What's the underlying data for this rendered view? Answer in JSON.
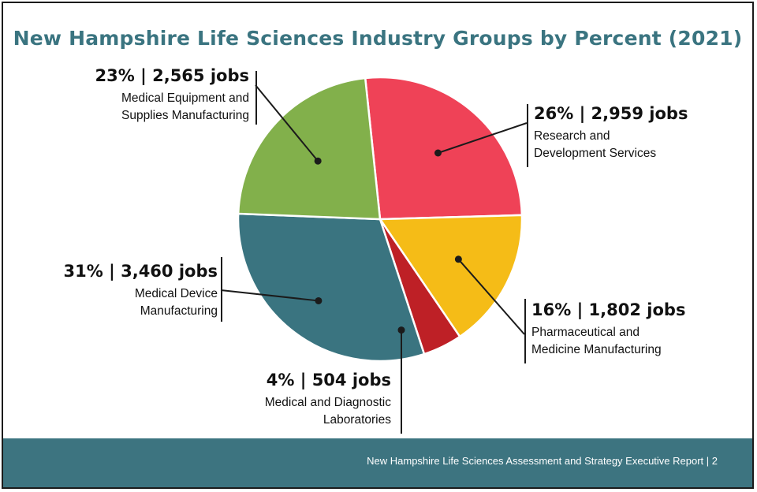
{
  "colors": {
    "title": "#3a7480",
    "footer_bg": "#3d7480",
    "slice_border": "#ffffff"
  },
  "chart_data": {
    "type": "pie",
    "title": "New Hampshire Life Sciences Industry Groups by Percent (2021)",
    "slices": [
      {
        "label": "Research and Development Services",
        "percent": 26,
        "percent_label": "26%",
        "jobs_label": "2,959 jobs",
        "value": 2959,
        "color": "#ef4257"
      },
      {
        "label": "Pharmaceutical and Medicine Manufacturing",
        "percent": 16,
        "percent_label": "16%",
        "jobs_label": "1,802 jobs",
        "value": 1802,
        "color": "#f5bc17"
      },
      {
        "label": "Medical and Diagnostic Laboratories",
        "percent": 4,
        "percent_label": "4%",
        "jobs_label": "504 jobs",
        "value": 504,
        "color": "#be2026"
      },
      {
        "label": "Medical Device Manufacturing",
        "percent": 31,
        "percent_label": "31%",
        "jobs_label": "3,460 jobs",
        "value": 3460,
        "color": "#3a7480"
      },
      {
        "label": "Medical Equipment and Supplies Manufacturing",
        "percent": 23,
        "percent_label": "23%",
        "jobs_label": "2,565 jobs",
        "value": 2565,
        "color": "#82b04b"
      }
    ]
  },
  "labels": {
    "rd": {
      "head": "26% | 2,959 jobs",
      "line1": "Research and",
      "line2": "Development Services"
    },
    "pharma": {
      "head": "16% | 1,802 jobs",
      "line1": "Pharmaceutical and",
      "line2": "Medicine Manufacturing"
    },
    "lab": {
      "head": "4% | 504 jobs",
      "line1": "Medical and Diagnostic",
      "line2": "Laboratories"
    },
    "device": {
      "head": "31% | 3,460 jobs",
      "line1": "Medical Device",
      "line2": "Manufacturing"
    },
    "equip": {
      "head": "23% | 2,565 jobs",
      "line1": "Medical Equipment and",
      "line2": "Supplies Manufacturing"
    }
  },
  "footer": {
    "text": "New Hampshire Life Sciences Assessment and Strategy Executive Report | 2"
  }
}
